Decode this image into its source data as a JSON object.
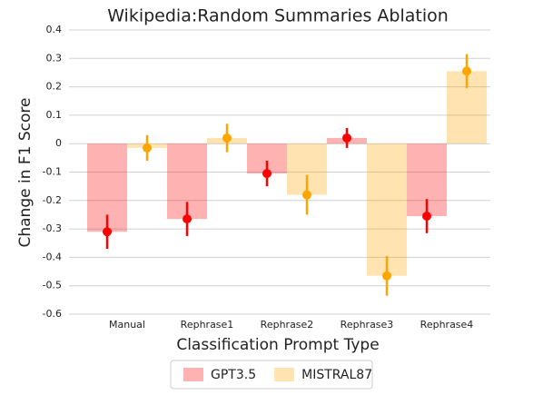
{
  "chart_data": {
    "type": "bar",
    "title": "Wikipedia:Random Summaries Ablation",
    "x_label": "Classification Prompt Type",
    "y_label": "Change in F1 Score",
    "categories": [
      "Manual",
      "Rephrase1",
      "Rephrase2",
      "Rephrase3",
      "Rephrase4"
    ],
    "series": [
      {
        "name": "GPT3.5",
        "color": "#ff0000",
        "values": [
          -0.31,
          -0.265,
          -0.105,
          0.02,
          -0.255
        ],
        "errors": [
          0.06,
          0.06,
          0.045,
          0.035,
          0.06
        ]
      },
      {
        "name": "MISTRAL87",
        "color": "#ffa500",
        "values": [
          -0.015,
          0.02,
          -0.18,
          -0.465,
          0.255
        ],
        "errors": [
          0.045,
          0.05,
          0.07,
          0.07,
          0.06
        ]
      }
    ],
    "ylim": [
      -0.6,
      0.4
    ],
    "yticks": [
      -0.6,
      -0.5,
      -0.4,
      -0.3,
      -0.2,
      -0.1,
      0.0,
      0.1,
      0.2,
      0.3,
      0.4
    ],
    "grid": true,
    "legend": "bottom"
  }
}
